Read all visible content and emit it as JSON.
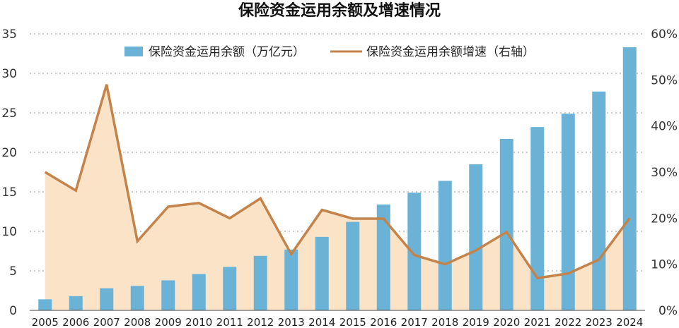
{
  "chart_data": {
    "type": "bar",
    "title": "保险资金运用余额及增速情况",
    "categories": [
      "2005",
      "2006",
      "2007",
      "2008",
      "2009",
      "2010",
      "2011",
      "2012",
      "2013",
      "2014",
      "2015",
      "2016",
      "2017",
      "2018",
      "2019",
      "2020",
      "2021",
      "2022",
      "2023",
      "2024"
    ],
    "series": [
      {
        "name": "保险资金运用余额（万亿元）",
        "type": "bar",
        "axis": "left",
        "color": "#6bb3d6",
        "values": [
          1.4,
          1.8,
          2.8,
          3.1,
          3.8,
          4.6,
          5.5,
          6.9,
          7.7,
          9.3,
          11.2,
          13.4,
          14.9,
          16.4,
          18.5,
          21.7,
          23.2,
          24.9,
          27.7,
          33.3
        ]
      },
      {
        "name": "保险资金运用余额增速（右轴）",
        "type": "line",
        "axis": "right",
        "color": "#c4834a",
        "fill": "#fbe3c7",
        "values": [
          30.0,
          26.0,
          49.0,
          15.0,
          22.5,
          23.3,
          20.0,
          24.3,
          12.2,
          21.8,
          19.9,
          19.9,
          12.0,
          10.0,
          13.0,
          17.0,
          7.0,
          8.0,
          11.0,
          20.0
        ]
      }
    ],
    "y_left": {
      "min": 0,
      "max": 35,
      "ticks": [
        "0",
        "5",
        "10",
        "15",
        "20",
        "25",
        "30",
        "35"
      ]
    },
    "y_right": {
      "min": 0,
      "max": 60,
      "ticks": [
        "0%",
        "10%",
        "20%",
        "30%",
        "40%",
        "50%",
        "60%"
      ]
    },
    "grid": true,
    "legend_position": "top"
  }
}
